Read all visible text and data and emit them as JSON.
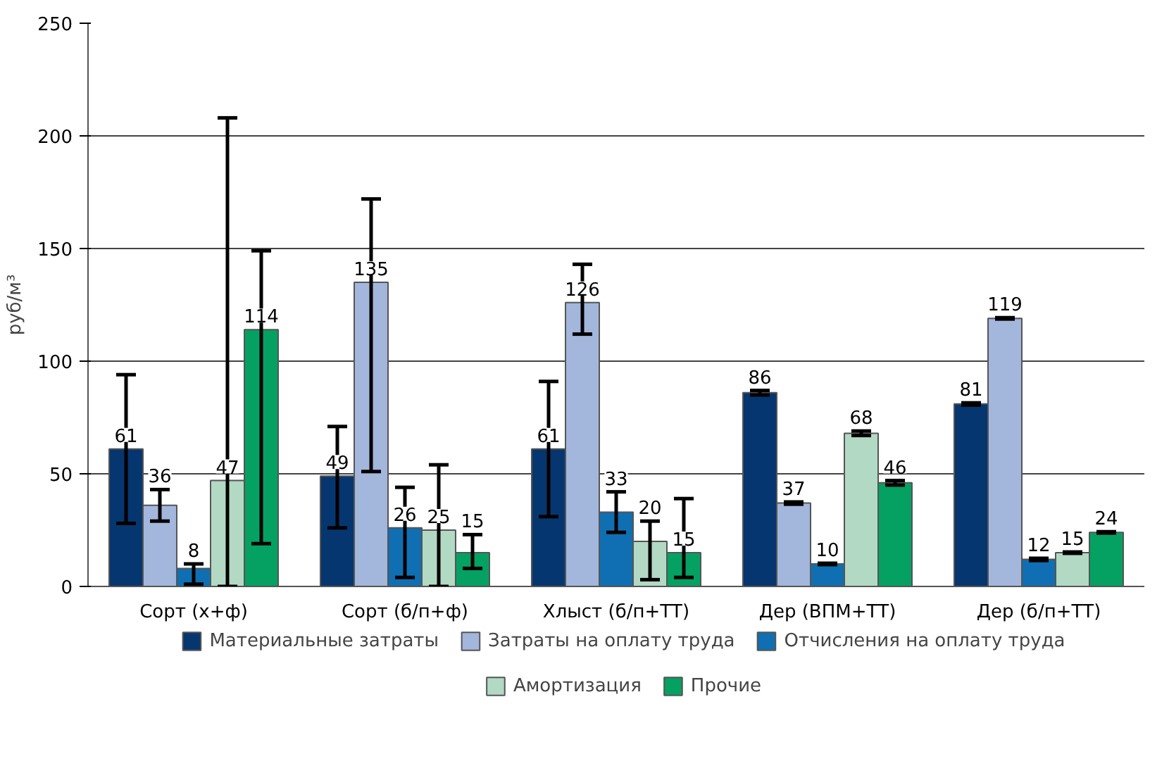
{
  "chart_data": {
    "type": "bar",
    "ylabel": "руб/м³",
    "categories": [
      "Сорт (х+ф)",
      "Сорт (б/п+ф)",
      "Хлыст (б/п+ТТ)",
      "Дер (ВПМ+ТТ)",
      "Дер (б/п+ТТ)"
    ],
    "series": [
      {
        "name": "Материальные затраты",
        "color": "#06366f",
        "values": [
          61,
          49,
          61,
          86,
          81
        ],
        "errors": [
          [
            28,
            94
          ],
          [
            26,
            71
          ],
          [
            31,
            91
          ],
          1,
          0.5
        ]
      },
      {
        "name": "Затраты на оплату труда",
        "color": "#a3b6dc",
        "values": [
          36,
          135,
          126,
          37,
          119
        ],
        "errors": [
          [
            29,
            43
          ],
          [
            51,
            172
          ],
          [
            112,
            143
          ],
          0.5,
          0.3
        ]
      },
      {
        "name": "Отчисления на оплату труда",
        "color": "#0f6fb2",
        "values": [
          8,
          26,
          33,
          10,
          12
        ],
        "errors": [
          [
            1,
            10
          ],
          [
            4,
            44
          ],
          [
            24,
            42
          ],
          0.3,
          0.5
        ]
      },
      {
        "name": "Амортизация",
        "color": "#b2d9c4",
        "values": [
          47,
          25,
          20,
          68,
          15
        ],
        "errors": [
          [
            0,
            208
          ],
          [
            0,
            54
          ],
          [
            3,
            29
          ],
          1,
          0.3
        ]
      },
      {
        "name": "Прочие",
        "color": "#04a163",
        "values": [
          114,
          15,
          15,
          46,
          24
        ],
        "errors": [
          [
            19,
            149
          ],
          [
            8,
            23
          ],
          [
            4,
            39
          ],
          1,
          0.3
        ]
      }
    ],
    "ylim": [
      0,
      250
    ],
    "yticks": [
      0,
      50,
      100,
      150,
      200,
      250
    ],
    "grid": "y",
    "legend": "bottom",
    "data_labels": true
  }
}
